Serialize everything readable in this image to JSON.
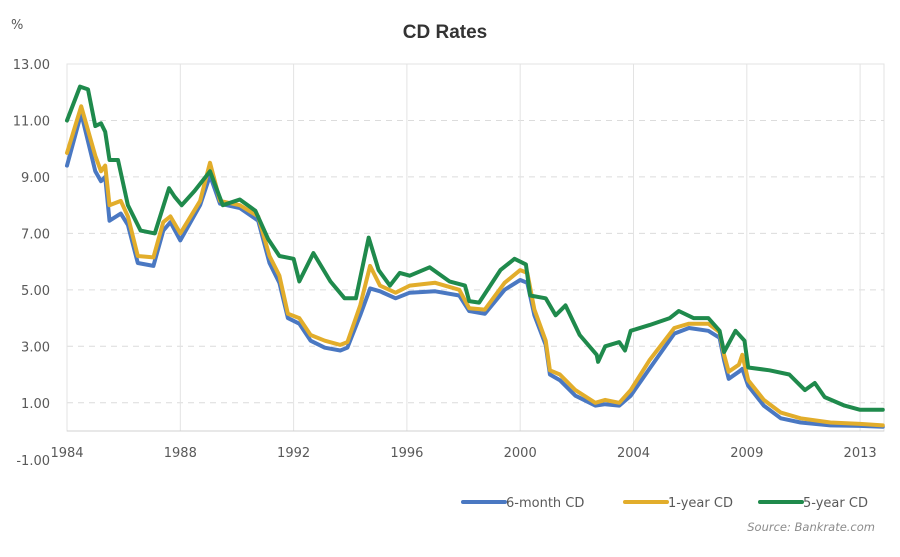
{
  "chart_data": {
    "type": "line",
    "title": "CD Rates",
    "ylabel": "%",
    "xlabel": "",
    "ylim": [
      -1,
      13
    ],
    "yticks": [
      13,
      11,
      9,
      7,
      5,
      3,
      1,
      -1
    ],
    "ytick_labels": [
      "13.00",
      "11.00",
      "9.00",
      "7.00",
      "5.00",
      "3.00",
      "1.00",
      "-1.00"
    ],
    "xticks": [
      1984,
      1988,
      1992,
      1996,
      2000,
      2004,
      2009,
      2013
    ],
    "xtick_labels": [
      "1984",
      "1988",
      "1992",
      "1996",
      "2000",
      "2004",
      "2009",
      "2013"
    ],
    "x_end": 2013.8,
    "grid": true,
    "legend_position": "bottom-right",
    "source": "Source: Bankrate.com",
    "series": [
      {
        "name": "6-month CD",
        "color": "#4a78c2",
        "x": [
          1984.0,
          1984.5,
          1985.0,
          1985.2,
          1985.35,
          1985.5,
          1985.9,
          1986.15,
          1986.5,
          1987.05,
          1987.4,
          1987.65,
          1988.0,
          1988.7,
          1989.05,
          1989.4,
          1990.1,
          1990.75,
          1991.15,
          1991.5,
          1991.8,
          1992.2,
          1992.6,
          1993.1,
          1993.65,
          1993.9,
          1994.35,
          1994.7,
          1995.05,
          1995.6,
          1996.1,
          1997.0,
          1997.85,
          1998.2,
          1998.75,
          1999.45,
          2000.0,
          2000.25,
          2000.5,
          2000.9,
          2001.05,
          2001.4,
          2001.95,
          2002.65,
          2003.0,
          2003.5,
          2003.9,
          2004.7,
          2005.8,
          2006.45,
          2007.3,
          2007.8,
          2008.0,
          2008.2,
          2008.65,
          2008.8,
          2009.05,
          2009.6,
          2010.2,
          2010.9,
          2011.95,
          2013.0,
          2013.8
        ],
        "values": [
          9.4,
          11.25,
          9.2,
          8.85,
          9.0,
          7.45,
          7.7,
          7.3,
          5.95,
          5.85,
          7.1,
          7.4,
          6.75,
          8.0,
          9.05,
          8.05,
          7.9,
          7.45,
          5.95,
          5.25,
          4.0,
          3.8,
          3.2,
          2.95,
          2.85,
          2.95,
          4.1,
          5.05,
          4.95,
          4.7,
          4.9,
          4.95,
          4.8,
          4.25,
          4.15,
          5.0,
          5.35,
          5.25,
          4.1,
          3.05,
          2.0,
          1.8,
          1.25,
          0.9,
          0.95,
          0.9,
          1.25,
          2.2,
          3.45,
          3.65,
          3.55,
          3.3,
          2.5,
          1.85,
          2.1,
          2.2,
          1.6,
          0.9,
          0.45,
          0.3,
          0.2,
          0.18,
          0.15
        ]
      },
      {
        "name": "1-year CD",
        "color": "#e2ad2b",
        "x": [
          1984.0,
          1984.5,
          1985.0,
          1985.2,
          1985.35,
          1985.5,
          1985.9,
          1986.15,
          1986.5,
          1987.05,
          1987.4,
          1987.65,
          1988.0,
          1988.7,
          1989.05,
          1989.4,
          1990.1,
          1990.75,
          1991.15,
          1991.5,
          1991.8,
          1992.2,
          1992.6,
          1993.1,
          1993.65,
          1993.9,
          1994.35,
          1994.7,
          1995.05,
          1995.6,
          1996.1,
          1997.0,
          1997.85,
          1998.2,
          1998.75,
          1999.45,
          2000.0,
          2000.25,
          2000.5,
          2000.9,
          2001.05,
          2001.4,
          2001.95,
          2002.65,
          2003.0,
          2003.5,
          2003.9,
          2004.7,
          2005.8,
          2006.45,
          2007.3,
          2007.8,
          2008.0,
          2008.2,
          2008.65,
          2008.8,
          2009.05,
          2009.6,
          2010.2,
          2010.9,
          2011.95,
          2013.0,
          2013.8
        ],
        "values": [
          9.85,
          11.5,
          9.75,
          9.2,
          9.4,
          8.0,
          8.15,
          7.6,
          6.2,
          6.15,
          7.4,
          7.6,
          7.0,
          8.15,
          9.5,
          8.15,
          8.0,
          7.6,
          6.2,
          5.5,
          4.15,
          4.0,
          3.4,
          3.2,
          3.05,
          3.15,
          4.45,
          5.85,
          5.15,
          4.9,
          5.15,
          5.25,
          5.0,
          4.35,
          4.3,
          5.25,
          5.7,
          5.6,
          4.3,
          3.2,
          2.15,
          2.0,
          1.45,
          1.0,
          1.1,
          1.0,
          1.45,
          2.5,
          3.65,
          3.8,
          3.8,
          3.5,
          2.7,
          2.1,
          2.35,
          2.7,
          1.8,
          1.1,
          0.65,
          0.45,
          0.3,
          0.25,
          0.2
        ]
      },
      {
        "name": "5-year CD",
        "color": "#1f8a4c",
        "x": [
          1984.0,
          1984.46,
          1984.74,
          1985.0,
          1985.2,
          1985.35,
          1985.5,
          1985.8,
          1986.15,
          1986.6,
          1987.1,
          1987.6,
          1987.8,
          1988.05,
          1988.5,
          1989.05,
          1989.5,
          1990.1,
          1990.65,
          1991.1,
          1991.5,
          1992.0,
          1992.2,
          1992.7,
          1993.3,
          1993.8,
          1994.2,
          1994.65,
          1995.0,
          1995.4,
          1995.75,
          1996.1,
          1996.8,
          1997.5,
          1998.05,
          1998.2,
          1998.55,
          1999.3,
          1999.8,
          2000.2,
          2000.35,
          2000.9,
          2001.25,
          2001.6,
          2002.1,
          2002.7,
          2002.75,
          2003.0,
          2003.5,
          2003.7,
          2003.9,
          2004.7,
          2005.6,
          2006.0,
          2006.65,
          2007.3,
          2007.8,
          2008.0,
          2008.5,
          2008.9,
          2009.05,
          2009.8,
          2010.5,
          2011.05,
          2011.4,
          2011.75,
          2012.45,
          2013.0,
          2013.8
        ],
        "values": [
          11.0,
          12.2,
          12.1,
          10.8,
          10.9,
          10.6,
          9.6,
          9.6,
          8.0,
          7.1,
          7.0,
          8.6,
          8.3,
          8.0,
          8.5,
          9.2,
          8.0,
          8.2,
          7.8,
          6.8,
          6.2,
          6.1,
          5.3,
          6.3,
          5.3,
          4.7,
          4.7,
          6.85,
          5.7,
          5.15,
          5.6,
          5.5,
          5.8,
          5.3,
          5.15,
          4.6,
          4.55,
          5.7,
          6.1,
          5.9,
          4.8,
          4.7,
          4.1,
          4.45,
          3.4,
          2.7,
          2.45,
          3.0,
          3.15,
          2.85,
          3.55,
          3.75,
          4.0,
          4.25,
          4.0,
          4.0,
          3.55,
          2.8,
          3.55,
          3.2,
          2.25,
          2.15,
          2.0,
          1.45,
          1.7,
          1.2,
          0.9,
          0.75,
          0.75
        ]
      }
    ]
  }
}
